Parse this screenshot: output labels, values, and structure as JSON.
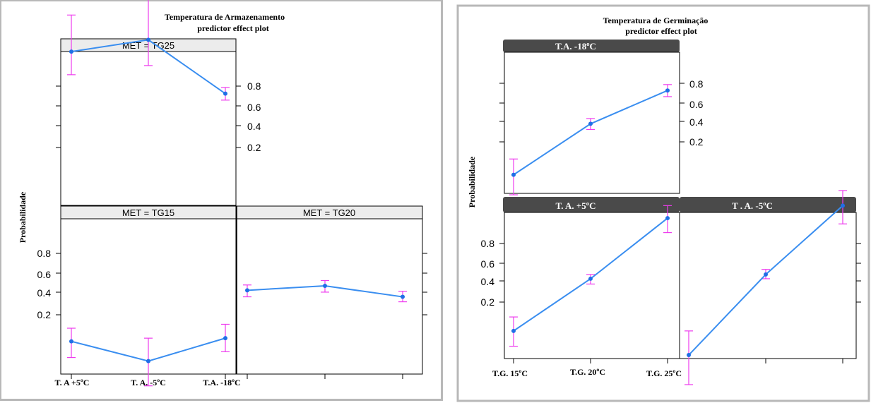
{
  "colors": {
    "line": "#3a8ef0",
    "error_bar": "#ee3cee",
    "point": "#1f6fe6",
    "strip_left": "#ececec",
    "strip_right": "#4a4a4a",
    "outer_border": "#b8b8b8"
  },
  "chart_data": [
    {
      "type": "line",
      "title": "Temperatura de Armazenamento",
      "subtitle": "predictor effect plot",
      "ylabel": "Probabilidade",
      "ytick_labels": [
        "0.2",
        "0.4",
        "0.6",
        "0.8"
      ],
      "categories": [
        "T. A +5ºC",
        "T. A. -5ºC",
        "T.A. -18ºC"
      ],
      "series": [
        {
          "name": "MET = TG25",
          "values": [
            0.95,
            0.97,
            0.74
          ],
          "lower": [
            0.87,
            0.91,
            0.68
          ],
          "upper": [
            0.99,
            0.995,
            0.79
          ]
        },
        {
          "name": "MET = TG15",
          "values": [
            0.07,
            0.03,
            0.08
          ],
          "lower": [
            0.035,
            0.01,
            0.045
          ],
          "upper": [
            0.12,
            0.08,
            0.14
          ]
        },
        {
          "name": "MET = TG20",
          "values": [
            0.43,
            0.48,
            0.36
          ],
          "lower": [
            0.36,
            0.41,
            0.31
          ],
          "upper": [
            0.49,
            0.54,
            0.42
          ]
        }
      ]
    },
    {
      "type": "line",
      "title": "Temperatura de Germinação",
      "subtitle": "predictor effect plot",
      "ylabel": "Probabilidade",
      "ytick_labels": [
        "0.2",
        "0.4",
        "0.6",
        "0.8"
      ],
      "categories": [
        "T.G. 15ºC",
        "T.G. 20ºC",
        "T.G. 25ºC"
      ],
      "series": [
        {
          "name": "T.A. -18ºC",
          "values": [
            0.05,
            0.37,
            0.74
          ],
          "lower": [
            0.02,
            0.31,
            0.68
          ],
          "upper": [
            0.1,
            0.43,
            0.79
          ]
        },
        {
          "name": "T. A. +5ºC",
          "values": [
            0.06,
            0.43,
            0.93
          ],
          "lower": [
            0.03,
            0.37,
            0.87
          ],
          "upper": [
            0.11,
            0.48,
            0.96
          ]
        },
        {
          "name": "T . A. -5ºC",
          "values": [
            0.02,
            0.48,
            0.96
          ],
          "lower": [
            0.005,
            0.43,
            0.91
          ],
          "upper": [
            0.06,
            0.54,
            0.98
          ]
        }
      ]
    }
  ]
}
